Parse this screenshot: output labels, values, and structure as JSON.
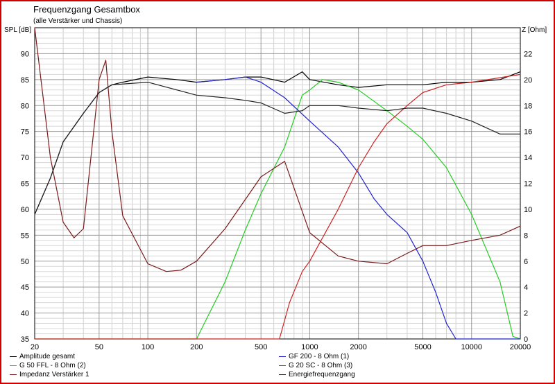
{
  "chart_data": {
    "type": "line",
    "title": "Frequenzgang Gesamtbox",
    "subtitle": "(alle Verstärker und Chassis)",
    "ylabel_left": "SPL [dB]",
    "ylabel_right": "Z [Ohm]",
    "x_scale": "log",
    "xlim": [
      20,
      20000
    ],
    "ylim_left": [
      35,
      95
    ],
    "ylim_right": [
      0,
      24
    ],
    "x_ticks": [
      20,
      50,
      100,
      200,
      500,
      1000,
      2000,
      5000,
      10000,
      20000
    ],
    "y_ticks_left": [
      35,
      40,
      45,
      50,
      55,
      60,
      65,
      70,
      75,
      80,
      85,
      90
    ],
    "y_ticks_right": [
      0,
      2,
      4,
      6,
      8,
      10,
      12,
      14,
      16,
      18,
      20,
      22
    ],
    "grid": true,
    "legend_placement": "bottom",
    "series": [
      {
        "name": "Amplitude gesamt",
        "color": "#000000",
        "axis": "left",
        "points": [
          [
            20,
            59
          ],
          [
            25,
            66
          ],
          [
            30,
            73
          ],
          [
            40,
            78.5
          ],
          [
            50,
            82.5
          ],
          [
            60,
            84
          ],
          [
            70,
            84.5
          ],
          [
            100,
            85.5
          ],
          [
            150,
            85
          ],
          [
            200,
            84.5
          ],
          [
            300,
            85
          ],
          [
            400,
            85.5
          ],
          [
            500,
            85.5
          ],
          [
            700,
            84.5
          ],
          [
            900,
            86.5
          ],
          [
            1000,
            85
          ],
          [
            1500,
            84
          ],
          [
            2000,
            83.5
          ],
          [
            3000,
            84
          ],
          [
            5000,
            84
          ],
          [
            7000,
            84.5
          ],
          [
            10000,
            84.5
          ],
          [
            15000,
            85
          ],
          [
            20000,
            86.5
          ]
        ]
      },
      {
        "name": "G 50 FFL - 8 Ohm (2)",
        "color": "#22cc22",
        "axis": "left",
        "points": [
          [
            20,
            35
          ],
          [
            150,
            35
          ],
          [
            200,
            35
          ],
          [
            300,
            46
          ],
          [
            400,
            56
          ],
          [
            500,
            63
          ],
          [
            700,
            72
          ],
          [
            900,
            82
          ],
          [
            1000,
            83
          ],
          [
            1200,
            85
          ],
          [
            1500,
            84.5
          ],
          [
            2000,
            83
          ],
          [
            3000,
            79
          ],
          [
            4000,
            76
          ],
          [
            5000,
            73.5
          ],
          [
            7000,
            68
          ],
          [
            10000,
            59
          ],
          [
            15000,
            46
          ],
          [
            18000,
            35.5
          ],
          [
            20000,
            35
          ]
        ]
      },
      {
        "name": "Impedanz Verstärker 1",
        "color": "#7a1a1a",
        "axis": "right",
        "points": [
          [
            20,
            24
          ],
          [
            25,
            14
          ],
          [
            30,
            9
          ],
          [
            35,
            7.8
          ],
          [
            40,
            8.5
          ],
          [
            50,
            20
          ],
          [
            55,
            21.5
          ],
          [
            60,
            16
          ],
          [
            70,
            9.5
          ],
          [
            100,
            5.8
          ],
          [
            130,
            5.2
          ],
          [
            160,
            5.3
          ],
          [
            200,
            6
          ],
          [
            300,
            8.5
          ],
          [
            500,
            12.5
          ],
          [
            700,
            13.7
          ],
          [
            1000,
            8.2
          ],
          [
            1500,
            6.4
          ],
          [
            2000,
            6
          ],
          [
            3000,
            5.8
          ],
          [
            4000,
            6.6
          ],
          [
            5000,
            7.2
          ],
          [
            7000,
            7.2
          ],
          [
            10000,
            7.6
          ],
          [
            15000,
            8
          ],
          [
            20000,
            8.7
          ]
        ]
      },
      {
        "name": "GF 200 - 8 Ohm (1)",
        "color": "#2222cc",
        "axis": "left",
        "points": [
          [
            200,
            84.5
          ],
          [
            300,
            85
          ],
          [
            400,
            85.5
          ],
          [
            500,
            84.5
          ],
          [
            700,
            81.5
          ],
          [
            1000,
            77
          ],
          [
            1500,
            72
          ],
          [
            2000,
            67
          ],
          [
            2500,
            62
          ],
          [
            3000,
            59
          ],
          [
            4000,
            55.5
          ],
          [
            5000,
            50
          ],
          [
            6000,
            44
          ],
          [
            7000,
            38
          ],
          [
            8000,
            35
          ],
          [
            20000,
            35
          ]
        ]
      },
      {
        "name": "G 20 SC - 8 Ohm (3)",
        "color": "#cc2222",
        "axis": "left",
        "points": [
          [
            20,
            35
          ],
          [
            500,
            35
          ],
          [
            650,
            35
          ],
          [
            750,
            42
          ],
          [
            900,
            48
          ],
          [
            1000,
            50
          ],
          [
            1500,
            60
          ],
          [
            2000,
            68
          ],
          [
            2500,
            73
          ],
          [
            3000,
            76.5
          ],
          [
            4000,
            80
          ],
          [
            5000,
            82.5
          ],
          [
            7000,
            84
          ],
          [
            10000,
            84.5
          ],
          [
            20000,
            86
          ]
        ]
      },
      {
        "name": "Energiefrequenzgang",
        "color": "#222222",
        "axis": "left",
        "points": [
          [
            20,
            59
          ],
          [
            25,
            66
          ],
          [
            30,
            73
          ],
          [
            40,
            78.5
          ],
          [
            50,
            82.5
          ],
          [
            60,
            84
          ],
          [
            100,
            84.5
          ],
          [
            200,
            82
          ],
          [
            300,
            81.5
          ],
          [
            400,
            81
          ],
          [
            500,
            80.5
          ],
          [
            700,
            78.5
          ],
          [
            900,
            79
          ],
          [
            1000,
            80
          ],
          [
            1500,
            80
          ],
          [
            2000,
            79.5
          ],
          [
            3000,
            79
          ],
          [
            4000,
            79.5
          ],
          [
            5000,
            79.5
          ],
          [
            7000,
            78.5
          ],
          [
            10000,
            77
          ],
          [
            15000,
            74.5
          ],
          [
            20000,
            74.5
          ]
        ]
      }
    ]
  }
}
